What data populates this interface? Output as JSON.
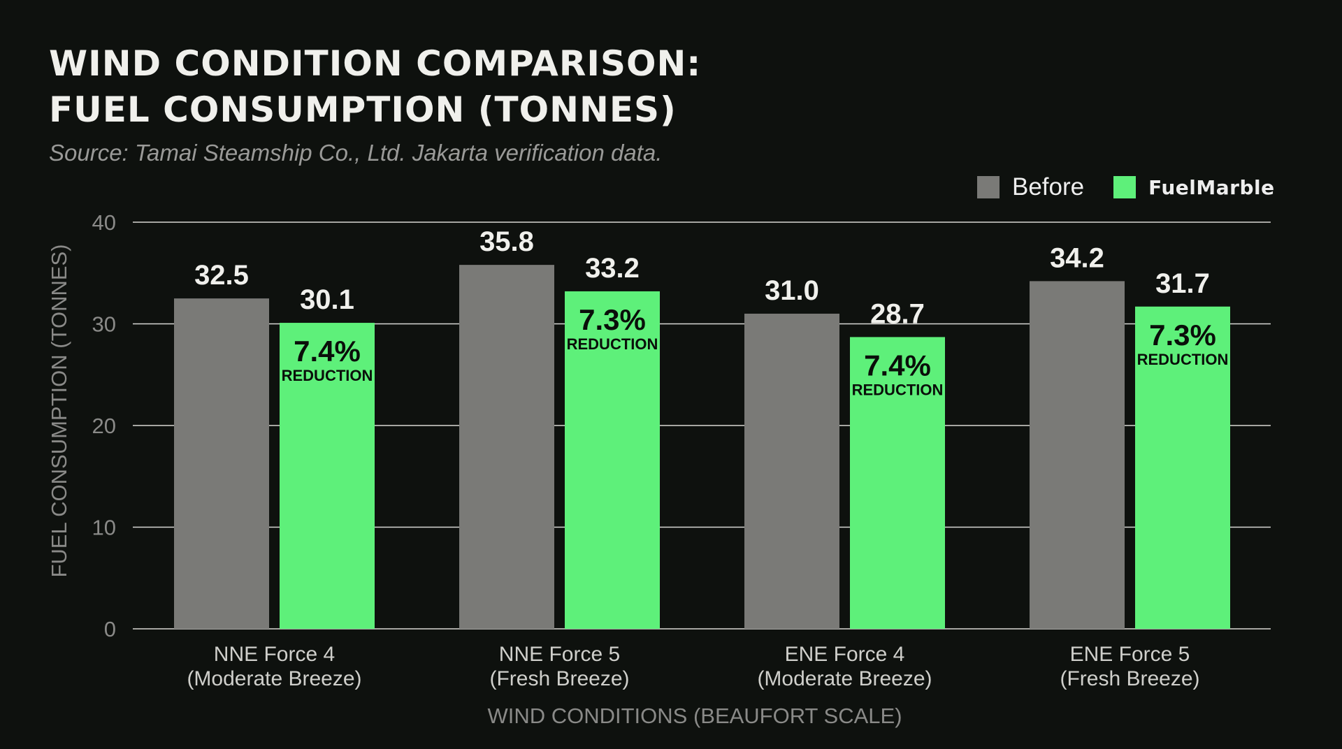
{
  "chart_data": {
    "type": "bar",
    "title": [
      "WIND CONDITION COMPARISON:",
      "FUEL CONSUMPTION (TONNES)"
    ],
    "subtitle": "Source: Tamai Steamship Co., Ltd. Jakarta verification data.",
    "xlabel": "WIND CONDITIONS (BEAUFORT SCALE)",
    "ylabel": "FUEL CONSUMPTION (TONNES)",
    "ylim": [
      0,
      40
    ],
    "yticks": [
      0,
      10,
      20,
      30,
      40
    ],
    "grid": true,
    "legend_position": "top-right",
    "categories": [
      [
        "NNE Force 4",
        "(Moderate Breeze)"
      ],
      [
        "NNE Force 5",
        "(Fresh Breeze)"
      ],
      [
        "ENE Force 4",
        "(Moderate Breeze)"
      ],
      [
        "ENE Force 5",
        "(Fresh Breeze)"
      ]
    ],
    "series": [
      {
        "name": "Before",
        "color": "#7a7a77",
        "values": [
          32.5,
          35.8,
          31.0,
          34.2
        ]
      },
      {
        "name": "FuelMarble",
        "color": "#5ef07a",
        "values": [
          30.1,
          33.2,
          28.7,
          31.7
        ]
      }
    ],
    "annotations": [
      {
        "pct": "7.4%",
        "text": "REDUCTION"
      },
      {
        "pct": "7.3%",
        "text": "REDUCTION"
      },
      {
        "pct": "7.4%",
        "text": "REDUCTION"
      },
      {
        "pct": "7.3%",
        "text": "REDUCTION"
      }
    ]
  }
}
